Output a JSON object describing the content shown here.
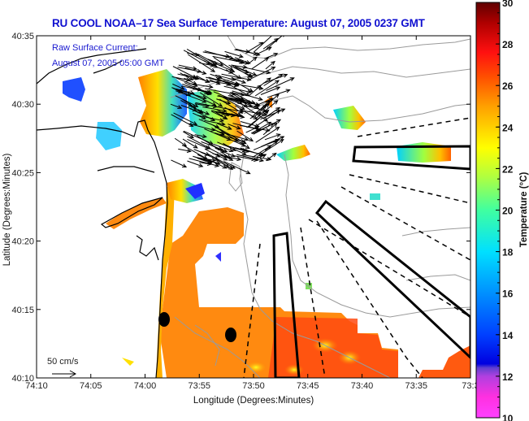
{
  "title": "RU COOL  NOAA–17  Sea Surface Temperature:  August 07, 2005 0237 GMT",
  "overlay": {
    "line1": "Raw Surface Current:",
    "line2": "August 07, 2005 05:00 GMT"
  },
  "scale_label": "50 cm/s",
  "colors": {
    "title": "#1010d0",
    "overlay_text": "#1a1ad0",
    "contour": "#9a9a9a",
    "coast": "#000000"
  },
  "chart_data": {
    "type": "heatmap",
    "title": "RU COOL  NOAA–17  Sea Surface Temperature:  August 07, 2005 0237 GMT",
    "xlabel": "Longitude (Degrees:Minutes)",
    "ylabel": "Latitude (Degrees:Minutes)",
    "x_ticks": [
      "74:10",
      "74:05",
      "74:00",
      "73:55",
      "73:50",
      "73:45",
      "73:40",
      "73:35",
      "73:3"
    ],
    "y_ticks": [
      "40:35",
      "40:30",
      "40:25",
      "40:20",
      "40:15",
      "40:10"
    ],
    "xlim": [
      "74:10",
      "73:30"
    ],
    "ylim": [
      "40:10",
      "40:35"
    ],
    "colorbar": {
      "label": "Temperature (°C)",
      "range": [
        10,
        30
      ],
      "ticks": [
        "30",
        "28",
        "26",
        "24",
        "22",
        "20",
        "18",
        "16",
        "14",
        "12",
        "10"
      ]
    },
    "markers": [
      {
        "name": "station",
        "lon": "73:59",
        "lat": "40:14.5"
      },
      {
        "name": "station",
        "lon": "73:52.5",
        "lat": "40:13.5"
      }
    ],
    "current_scale": "50 cm/s",
    "grid": false
  }
}
